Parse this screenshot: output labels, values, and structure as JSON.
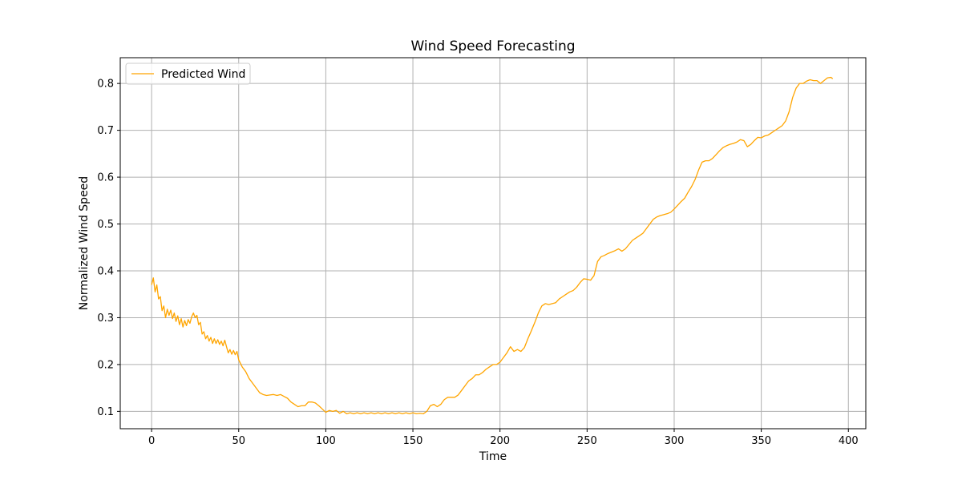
{
  "chart_data": {
    "type": "line",
    "title": "Wind Speed Forecasting",
    "xlabel": "Time",
    "ylabel": "Normalized Wind Speed",
    "xlim": [
      -18,
      410
    ],
    "ylim": [
      0.063,
      0.855
    ],
    "xticks": [
      0,
      50,
      100,
      150,
      200,
      250,
      300,
      350,
      400
    ],
    "yticks": [
      0.1,
      0.2,
      0.3,
      0.4,
      0.5,
      0.6,
      0.7,
      0.8
    ],
    "grid": true,
    "legend_position": "upper-left",
    "series": [
      {
        "name": "Predicted Wind",
        "color": "#FFA500",
        "x": [
          0,
          1,
          2,
          3,
          4,
          5,
          6,
          7,
          8,
          9,
          10,
          11,
          12,
          13,
          14,
          15,
          16,
          17,
          18,
          19,
          20,
          21,
          22,
          23,
          24,
          25,
          26,
          27,
          28,
          29,
          30,
          31,
          32,
          33,
          34,
          35,
          36,
          37,
          38,
          39,
          40,
          41,
          42,
          43,
          44,
          45,
          46,
          47,
          48,
          49,
          50,
          52,
          54,
          56,
          58,
          60,
          62,
          64,
          66,
          68,
          70,
          72,
          74,
          76,
          78,
          80,
          82,
          84,
          86,
          88,
          90,
          92,
          94,
          96,
          98,
          100,
          102,
          104,
          106,
          108,
          110,
          112,
          114,
          116,
          118,
          120,
          122,
          124,
          126,
          128,
          130,
          132,
          134,
          136,
          138,
          140,
          142,
          144,
          146,
          148,
          150,
          152,
          154,
          156,
          158,
          160,
          162,
          164,
          166,
          168,
          170,
          172,
          174,
          176,
          178,
          180,
          182,
          184,
          186,
          188,
          190,
          192,
          194,
          196,
          198,
          200,
          202,
          204,
          206,
          208,
          210,
          212,
          214,
          216,
          218,
          220,
          222,
          224,
          226,
          228,
          230,
          232,
          234,
          236,
          238,
          240,
          242,
          244,
          246,
          248,
          250,
          252,
          254,
          256,
          258,
          260,
          262,
          264,
          266,
          268,
          270,
          272,
          274,
          276,
          278,
          280,
          282,
          284,
          286,
          288,
          290,
          292,
          294,
          296,
          298,
          300,
          302,
          304,
          306,
          308,
          310,
          312,
          314,
          316,
          318,
          320,
          322,
          324,
          326,
          328,
          330,
          332,
          334,
          336,
          338,
          340,
          342,
          344,
          346,
          348,
          350,
          352,
          354,
          356,
          358,
          360,
          362,
          364,
          366,
          368,
          370,
          372,
          374,
          376,
          378,
          380,
          382,
          384,
          386,
          388,
          390,
          391
        ],
        "values": [
          0.37,
          0.385,
          0.355,
          0.37,
          0.34,
          0.345,
          0.315,
          0.325,
          0.3,
          0.318,
          0.305,
          0.316,
          0.298,
          0.31,
          0.292,
          0.304,
          0.285,
          0.298,
          0.28,
          0.294,
          0.283,
          0.296,
          0.288,
          0.302,
          0.31,
          0.3,
          0.305,
          0.285,
          0.29,
          0.265,
          0.27,
          0.255,
          0.262,
          0.25,
          0.258,
          0.245,
          0.255,
          0.245,
          0.253,
          0.243,
          0.25,
          0.24,
          0.252,
          0.238,
          0.225,
          0.232,
          0.222,
          0.23,
          0.221,
          0.228,
          0.21,
          0.195,
          0.185,
          0.17,
          0.16,
          0.15,
          0.14,
          0.136,
          0.134,
          0.135,
          0.136,
          0.134,
          0.136,
          0.132,
          0.128,
          0.12,
          0.115,
          0.11,
          0.112,
          0.112,
          0.12,
          0.12,
          0.118,
          0.112,
          0.105,
          0.098,
          0.102,
          0.1,
          0.102,
          0.096,
          0.1,
          0.095,
          0.097,
          0.095,
          0.097,
          0.095,
          0.097,
          0.095,
          0.097,
          0.095,
          0.097,
          0.095,
          0.097,
          0.095,
          0.097,
          0.095,
          0.097,
          0.095,
          0.097,
          0.095,
          0.097,
          0.095,
          0.096,
          0.095,
          0.1,
          0.112,
          0.115,
          0.11,
          0.115,
          0.125,
          0.13,
          0.13,
          0.13,
          0.135,
          0.145,
          0.155,
          0.165,
          0.17,
          0.178,
          0.178,
          0.183,
          0.19,
          0.195,
          0.2,
          0.2,
          0.205,
          0.215,
          0.225,
          0.238,
          0.228,
          0.232,
          0.228,
          0.236,
          0.255,
          0.272,
          0.29,
          0.31,
          0.325,
          0.33,
          0.328,
          0.33,
          0.332,
          0.34,
          0.345,
          0.35,
          0.355,
          0.358,
          0.365,
          0.375,
          0.383,
          0.382,
          0.38,
          0.39,
          0.42,
          0.43,
          0.433,
          0.437,
          0.44,
          0.443,
          0.447,
          0.442,
          0.447,
          0.456,
          0.465,
          0.47,
          0.475,
          0.48,
          0.49,
          0.5,
          0.51,
          0.515,
          0.518,
          0.52,
          0.522,
          0.525,
          0.532,
          0.54,
          0.548,
          0.555,
          0.568,
          0.58,
          0.595,
          0.615,
          0.632,
          0.635,
          0.635,
          0.64,
          0.648,
          0.656,
          0.663,
          0.667,
          0.67,
          0.672,
          0.675,
          0.68,
          0.678,
          0.665,
          0.67,
          0.678,
          0.685,
          0.684,
          0.688,
          0.69,
          0.695,
          0.7,
          0.705,
          0.71,
          0.72,
          0.74,
          0.77,
          0.79,
          0.8,
          0.8,
          0.805,
          0.808,
          0.806,
          0.806,
          0.8,
          0.806,
          0.812,
          0.813,
          0.81
        ]
      }
    ]
  }
}
